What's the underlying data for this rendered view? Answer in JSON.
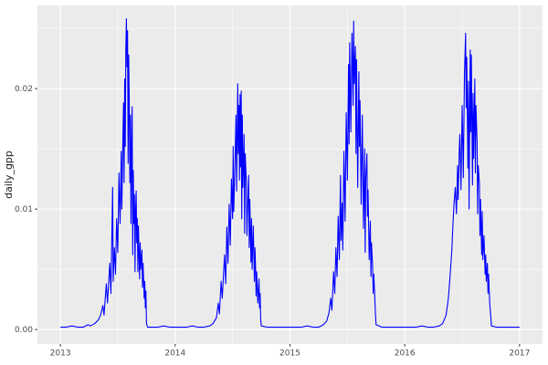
{
  "figure": {
    "background": "#FFFFFF",
    "panel_background": "#EBEBEB",
    "grid_color": "#FFFFFF",
    "tick_mark_color": "#333333",
    "tick_label_color": "#4D4D4D",
    "axis_title_color": "#1A1A1A"
  },
  "chart_data": {
    "type": "line",
    "title": "",
    "xlabel": "",
    "ylabel": "daily_gpp",
    "legend": "none",
    "grid": "major+minor",
    "xlim": [
      2012.8,
      2017.2
    ],
    "ylim": [
      -0.0012,
      0.0269
    ],
    "x_ticks": {
      "values": [
        2013,
        2014,
        2015,
        2016,
        2017
      ],
      "labels": [
        "2013",
        "2014",
        "2015",
        "2016",
        "2017"
      ]
    },
    "x_minor": [
      2013.5,
      2014.5,
      2015.5,
      2016.5
    ],
    "y_ticks": {
      "values": [
        0,
        0.01,
        0.02
      ],
      "labels": [
        "0.00",
        "0.01",
        "0.02"
      ]
    },
    "y_minor": [
      0.005,
      0.015,
      0.025
    ],
    "series": [
      {
        "name": "daily_gpp",
        "color": "#0000FF",
        "points": [
          [
            2013.0,
            0.0002
          ],
          [
            2013.05,
            0.0002
          ],
          [
            2013.1,
            0.0003
          ],
          [
            2013.15,
            0.0002
          ],
          [
            2013.2,
            0.0002
          ],
          [
            2013.24,
            0.0004
          ],
          [
            2013.26,
            0.0003
          ],
          [
            2013.3,
            0.0005
          ],
          [
            2013.33,
            0.0008
          ],
          [
            2013.35,
            0.0012
          ],
          [
            2013.37,
            0.002
          ],
          [
            2013.38,
            0.0012
          ],
          [
            2013.4,
            0.0038
          ],
          [
            2013.41,
            0.0022
          ],
          [
            2013.43,
            0.0055
          ],
          [
            2013.44,
            0.003
          ],
          [
            2013.45,
            0.0088
          ],
          [
            2013.455,
            0.0118
          ],
          [
            2013.46,
            0.004
          ],
          [
            2013.47,
            0.0068
          ],
          [
            2013.48,
            0.0046
          ],
          [
            2013.49,
            0.0092
          ],
          [
            2013.5,
            0.0064
          ],
          [
            2013.51,
            0.013
          ],
          [
            2013.52,
            0.0088
          ],
          [
            2013.53,
            0.0148
          ],
          [
            2013.535,
            0.01
          ],
          [
            2013.545,
            0.0162
          ],
          [
            2013.55,
            0.0188
          ],
          [
            2013.555,
            0.0122
          ],
          [
            2013.56,
            0.0208
          ],
          [
            2013.565,
            0.0152
          ],
          [
            2013.57,
            0.0232
          ],
          [
            2013.575,
            0.0258
          ],
          [
            2013.58,
            0.0218
          ],
          [
            2013.585,
            0.0248
          ],
          [
            2013.59,
            0.0138
          ],
          [
            2013.595,
            0.0228
          ],
          [
            2013.6,
            0.0188
          ],
          [
            2013.605,
            0.0122
          ],
          [
            2013.61,
            0.0178
          ],
          [
            2013.615,
            0.0088
          ],
          [
            2013.62,
            0.0152
          ],
          [
            2013.625,
            0.0185
          ],
          [
            2013.63,
            0.0062
          ],
          [
            2013.635,
            0.0132
          ],
          [
            2013.64,
            0.0088
          ],
          [
            2013.645,
            0.0112
          ],
          [
            2013.65,
            0.0048
          ],
          [
            2013.655,
            0.0098
          ],
          [
            2013.66,
            0.0115
          ],
          [
            2013.665,
            0.0072
          ],
          [
            2013.67,
            0.0092
          ],
          [
            2013.675,
            0.0048
          ],
          [
            2013.68,
            0.0086
          ],
          [
            2013.69,
            0.0042
          ],
          [
            2013.695,
            0.0072
          ],
          [
            2013.7,
            0.005
          ],
          [
            2013.71,
            0.0066
          ],
          [
            2013.715,
            0.0035
          ],
          [
            2013.72,
            0.0055
          ],
          [
            2013.73,
            0.0026
          ],
          [
            2013.735,
            0.004
          ],
          [
            2013.74,
            0.0018
          ],
          [
            2013.745,
            0.0032
          ],
          [
            2013.75,
            0.0005
          ],
          [
            2013.76,
            0.0002
          ],
          [
            2013.8,
            0.0002
          ],
          [
            2013.85,
            0.0002
          ],
          [
            2013.9,
            0.0003
          ],
          [
            2013.95,
            0.0002
          ],
          [
            2014.0,
            0.0002
          ],
          [
            2014.05,
            0.0002
          ],
          [
            2014.1,
            0.0002
          ],
          [
            2014.15,
            0.0003
          ],
          [
            2014.2,
            0.0002
          ],
          [
            2014.25,
            0.0002
          ],
          [
            2014.3,
            0.0003
          ],
          [
            2014.33,
            0.0005
          ],
          [
            2014.36,
            0.001
          ],
          [
            2014.375,
            0.0022
          ],
          [
            2014.385,
            0.0013
          ],
          [
            2014.4,
            0.004
          ],
          [
            2014.41,
            0.0026
          ],
          [
            2014.43,
            0.0062
          ],
          [
            2014.44,
            0.0038
          ],
          [
            2014.45,
            0.0085
          ],
          [
            2014.46,
            0.0055
          ],
          [
            2014.47,
            0.0104
          ],
          [
            2014.48,
            0.007
          ],
          [
            2014.49,
            0.0125
          ],
          [
            2014.5,
            0.0092
          ],
          [
            2014.505,
            0.0152
          ],
          [
            2014.51,
            0.0098
          ],
          [
            2014.52,
            0.0135
          ],
          [
            2014.53,
            0.0178
          ],
          [
            2014.535,
            0.0115
          ],
          [
            2014.545,
            0.0204
          ],
          [
            2014.55,
            0.0146
          ],
          [
            2014.555,
            0.0186
          ],
          [
            2014.56,
            0.0124
          ],
          [
            2014.565,
            0.0195
          ],
          [
            2014.57,
            0.0135
          ],
          [
            2014.575,
            0.0198
          ],
          [
            2014.58,
            0.0092
          ],
          [
            2014.585,
            0.0178
          ],
          [
            2014.59,
            0.0118
          ],
          [
            2014.6,
            0.0162
          ],
          [
            2014.605,
            0.008
          ],
          [
            2014.61,
            0.0146
          ],
          [
            2014.62,
            0.0122
          ],
          [
            2014.625,
            0.0078
          ],
          [
            2014.63,
            0.0098
          ],
          [
            2014.64,
            0.0128
          ],
          [
            2014.645,
            0.0068
          ],
          [
            2014.65,
            0.0108
          ],
          [
            2014.66,
            0.0056
          ],
          [
            2014.665,
            0.0092
          ],
          [
            2014.67,
            0.005
          ],
          [
            2014.68,
            0.0086
          ],
          [
            2014.69,
            0.004
          ],
          [
            2014.695,
            0.0068
          ],
          [
            2014.7,
            0.0052
          ],
          [
            2014.705,
            0.0028
          ],
          [
            2014.71,
            0.0048
          ],
          [
            2014.72,
            0.0022
          ],
          [
            2014.73,
            0.0042
          ],
          [
            2014.735,
            0.0018
          ],
          [
            2014.74,
            0.003
          ],
          [
            2014.745,
            0.0008
          ],
          [
            2014.75,
            0.0003
          ],
          [
            2014.8,
            0.0002
          ],
          [
            2014.85,
            0.0002
          ],
          [
            2014.9,
            0.0002
          ],
          [
            2014.95,
            0.0002
          ],
          [
            2015.0,
            0.0002
          ],
          [
            2015.05,
            0.0002
          ],
          [
            2015.1,
            0.0002
          ],
          [
            2015.15,
            0.0003
          ],
          [
            2015.2,
            0.0002
          ],
          [
            2015.25,
            0.0002
          ],
          [
            2015.29,
            0.0004
          ],
          [
            2015.32,
            0.0007
          ],
          [
            2015.34,
            0.0014
          ],
          [
            2015.355,
            0.0026
          ],
          [
            2015.365,
            0.0016
          ],
          [
            2015.38,
            0.0048
          ],
          [
            2015.39,
            0.003
          ],
          [
            2015.4,
            0.0068
          ],
          [
            2015.41,
            0.0044
          ],
          [
            2015.42,
            0.0094
          ],
          [
            2015.43,
            0.0058
          ],
          [
            2015.44,
            0.0128
          ],
          [
            2015.445,
            0.0074
          ],
          [
            2015.455,
            0.0105
          ],
          [
            2015.46,
            0.0066
          ],
          [
            2015.47,
            0.0148
          ],
          [
            2015.48,
            0.009
          ],
          [
            2015.49,
            0.018
          ],
          [
            2015.5,
            0.0124
          ],
          [
            2015.51,
            0.022
          ],
          [
            2015.515,
            0.0154
          ],
          [
            2015.52,
            0.0238
          ],
          [
            2015.53,
            0.0164
          ],
          [
            2015.54,
            0.0246
          ],
          [
            2015.55,
            0.0186
          ],
          [
            2015.555,
            0.0256
          ],
          [
            2015.56,
            0.0204
          ],
          [
            2015.57,
            0.0235
          ],
          [
            2015.575,
            0.0146
          ],
          [
            2015.58,
            0.0224
          ],
          [
            2015.59,
            0.0118
          ],
          [
            2015.6,
            0.0214
          ],
          [
            2015.605,
            0.0152
          ],
          [
            2015.61,
            0.019
          ],
          [
            2015.62,
            0.0104
          ],
          [
            2015.63,
            0.0178
          ],
          [
            2015.64,
            0.0084
          ],
          [
            2015.65,
            0.015
          ],
          [
            2015.655,
            0.0064
          ],
          [
            2015.66,
            0.0124
          ],
          [
            2015.67,
            0.0146
          ],
          [
            2015.675,
            0.0094
          ],
          [
            2015.68,
            0.0116
          ],
          [
            2015.69,
            0.0058
          ],
          [
            2015.7,
            0.009
          ],
          [
            2015.705,
            0.0044
          ],
          [
            2015.71,
            0.0072
          ],
          [
            2015.72,
            0.0052
          ],
          [
            2015.725,
            0.003
          ],
          [
            2015.73,
            0.0046
          ],
          [
            2015.74,
            0.0024
          ],
          [
            2015.745,
            0.0012
          ],
          [
            2015.75,
            0.0004
          ],
          [
            2015.8,
            0.0002
          ],
          [
            2015.85,
            0.0002
          ],
          [
            2015.9,
            0.0002
          ],
          [
            2015.95,
            0.0002
          ],
          [
            2016.0,
            0.0002
          ],
          [
            2016.05,
            0.0002
          ],
          [
            2016.1,
            0.0002
          ],
          [
            2016.15,
            0.0003
          ],
          [
            2016.2,
            0.0002
          ],
          [
            2016.25,
            0.0002
          ],
          [
            2016.3,
            0.0003
          ],
          [
            2016.33,
            0.0005
          ],
          [
            2016.36,
            0.0012
          ],
          [
            2016.38,
            0.0026
          ],
          [
            2016.395,
            0.0045
          ],
          [
            2016.41,
            0.0066
          ],
          [
            2016.42,
            0.0088
          ],
          [
            2016.43,
            0.0106
          ],
          [
            2016.44,
            0.0118
          ],
          [
            2016.45,
            0.0096
          ],
          [
            2016.46,
            0.0136
          ],
          [
            2016.465,
            0.0108
          ],
          [
            2016.475,
            0.015
          ],
          [
            2016.48,
            0.0162
          ],
          [
            2016.49,
            0.0116
          ],
          [
            2016.5,
            0.0186
          ],
          [
            2016.51,
            0.0126
          ],
          [
            2016.52,
            0.0212
          ],
          [
            2016.53,
            0.0246
          ],
          [
            2016.535,
            0.0184
          ],
          [
            2016.54,
            0.0226
          ],
          [
            2016.55,
            0.0134
          ],
          [
            2016.555,
            0.0206
          ],
          [
            2016.56,
            0.01
          ],
          [
            2016.57,
            0.0232
          ],
          [
            2016.575,
            0.0164
          ],
          [
            2016.58,
            0.0228
          ],
          [
            2016.59,
            0.012
          ],
          [
            2016.595,
            0.0196
          ],
          [
            2016.6,
            0.0142
          ],
          [
            2016.61,
            0.0208
          ],
          [
            2016.615,
            0.013
          ],
          [
            2016.62,
            0.0186
          ],
          [
            2016.63,
            0.0156
          ],
          [
            2016.635,
            0.0096
          ],
          [
            2016.64,
            0.0136
          ],
          [
            2016.65,
            0.0122
          ],
          [
            2016.655,
            0.0078
          ],
          [
            2016.66,
            0.0108
          ],
          [
            2016.67,
            0.0062
          ],
          [
            2016.675,
            0.0098
          ],
          [
            2016.68,
            0.0058
          ],
          [
            2016.69,
            0.0078
          ],
          [
            2016.7,
            0.0046
          ],
          [
            2016.705,
            0.0062
          ],
          [
            2016.71,
            0.004
          ],
          [
            2016.72,
            0.0055
          ],
          [
            2016.725,
            0.003
          ],
          [
            2016.73,
            0.0046
          ],
          [
            2016.74,
            0.0022
          ],
          [
            2016.75,
            0.001
          ],
          [
            2016.755,
            0.0003
          ],
          [
            2016.8,
            0.0002
          ],
          [
            2016.85,
            0.0002
          ],
          [
            2016.9,
            0.0002
          ],
          [
            2016.95,
            0.0002
          ],
          [
            2017.0,
            0.0002
          ]
        ]
      }
    ]
  }
}
